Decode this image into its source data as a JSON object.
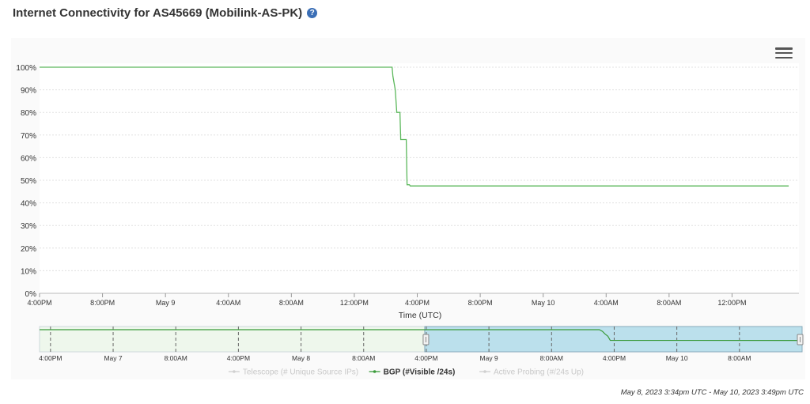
{
  "header": {
    "title": "Internet Connectivity for AS45669 (Mobilink-AS-PK)",
    "help_icon": "question-circle-icon",
    "help_glyph": "?"
  },
  "chart_data": {
    "type": "line",
    "title": "",
    "xlabel": "Time (UTC)",
    "ylabel": "",
    "ylim": [
      0,
      100
    ],
    "y_ticks": [
      0,
      10,
      20,
      30,
      40,
      50,
      60,
      70,
      80,
      90,
      100
    ],
    "y_tick_labels": [
      "0%",
      "10%",
      "20%",
      "30%",
      "40%",
      "50%",
      "60%",
      "70%",
      "80%",
      "90%",
      "100%"
    ],
    "x_ticks": [
      0,
      4,
      8,
      12,
      16,
      20,
      24,
      28,
      32,
      36,
      40,
      44
    ],
    "x_tick_labels": [
      "4:00PM",
      "8:00PM",
      "May 9",
      "4:00AM",
      "8:00AM",
      "12:00PM",
      "4:00PM",
      "8:00PM",
      "May 10",
      "4:00AM",
      "8:00AM",
      "12:00PM"
    ],
    "xlim": [
      0,
      48.25
    ],
    "series": [
      {
        "name": "BGP (#Visible /24s)",
        "color": "#5cb85c",
        "x": [
          -0.45,
          22.4,
          22.45,
          22.6,
          22.7,
          22.75,
          22.8,
          22.9,
          22.95,
          23.05,
          23.1,
          23.3,
          23.35,
          23.5,
          23.55,
          47.6
        ],
        "y": [
          100,
          100,
          96,
          90,
          80,
          80,
          80,
          80,
          68,
          68,
          68,
          68,
          48,
          48,
          47.5,
          47.5
        ]
      }
    ],
    "legend": [
      "Telescope (# Unique Source IPs)",
      "BGP (#Visible /24s)",
      "Active Probing (#/24s Up)"
    ],
    "legend_active": [
      false,
      true,
      false
    ],
    "legend_placement": "bottom",
    "grid": true,
    "navigator": {
      "x_tick_labels": [
        "4:00PM",
        "May 7",
        "8:00AM",
        "4:00PM",
        "May 8",
        "8:00AM",
        "4:00PM",
        "May 9",
        "8:00AM",
        "4:00PM",
        "May 10",
        "8:00AM"
      ],
      "x_ticks": [
        0,
        16,
        32,
        48,
        64,
        80,
        96,
        112,
        128,
        144,
        160,
        176
      ],
      "xlim": [
        -2.8,
        192
      ],
      "selected_range": [
        95.6,
        192
      ],
      "series_x": [
        -2.8,
        140.2,
        141.0,
        141.6,
        142.4,
        143.0,
        192
      ],
      "series_y": [
        100,
        100,
        92,
        80,
        68,
        48,
        47.5
      ]
    }
  },
  "footer": {
    "date_range": "May 8, 2023 3:34pm UTC - May 10, 2023 3:49pm UTC"
  }
}
